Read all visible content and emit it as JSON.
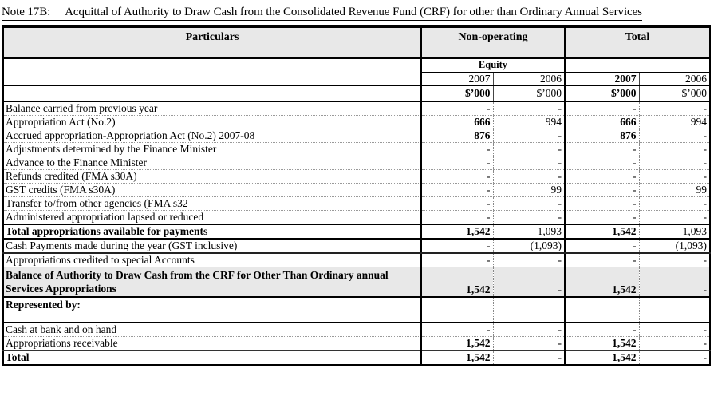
{
  "note": {
    "id": "Note 17B:",
    "title": "Acquittal of Authority to Draw Cash from the Consolidated Revenue Fund (CRF) for other than Ordinary Annual Services"
  },
  "table": {
    "columns": {
      "particulars": "Particulars",
      "group_non_operating": "Non-operating",
      "group_total": "Total",
      "equity": "Equity",
      "years": [
        "2007",
        "2006",
        "2007",
        "2006"
      ],
      "units": [
        "$’000",
        "$’000",
        "$’000",
        "$’000"
      ]
    },
    "rows": [
      {
        "label": "Balance carried from previous year",
        "values": [
          "-",
          "-",
          "-",
          "-"
        ]
      },
      {
        "label": "Appropriation Act (No.2)",
        "values": [
          "666",
          "994",
          "666",
          "994"
        ]
      },
      {
        "label": "Accrued appropriation-Appropriation Act (No.2) 2007-08",
        "values": [
          "876",
          "-",
          "876",
          "-"
        ]
      },
      {
        "label": "Adjustments determined by the Finance Minister",
        "values": [
          "-",
          "-",
          "-",
          "-"
        ]
      },
      {
        "label": "Advance to the Finance Minister",
        "values": [
          "-",
          "-",
          "-",
          "-"
        ]
      },
      {
        "label": "Refunds credited (FMA s30A)",
        "values": [
          "-",
          "-",
          "-",
          "-"
        ]
      },
      {
        "label": "GST credits (FMA s30A)",
        "values": [
          "-",
          "99",
          "-",
          "99"
        ]
      },
      {
        "label": "Transfer to/from other agencies (FMA s32",
        "values": [
          "-",
          "-",
          "-",
          "-"
        ]
      },
      {
        "label": "Administered appropriation lapsed or reduced",
        "values": [
          "-",
          "-",
          "-",
          "-"
        ]
      },
      {
        "label": "Total appropriations available for payments",
        "values": [
          "1,542",
          "1,093",
          "1,542",
          "1,093"
        ],
        "emphasis": true
      },
      {
        "label": "Cash Payments made during the year (GST inclusive)",
        "values": [
          "-",
          "(1,093)",
          "-",
          "(1,093)"
        ]
      },
      {
        "label": "Appropriations credited to special Accounts",
        "values": [
          "-",
          "-",
          "-",
          "-"
        ]
      },
      {
        "label": "Balance of Authority to Draw Cash from the CRF for Other Than Ordinary annual Services Appropriations",
        "values": [
          "1,542",
          "-",
          "1,542",
          "-"
        ],
        "emphasis": true
      },
      {
        "label": "Represented by:",
        "values": [
          "",
          "",
          "",
          ""
        ],
        "emphasis": true
      },
      {
        "label": "Cash at bank and on hand",
        "values": [
          "-",
          "-",
          "-",
          "-"
        ]
      },
      {
        "label": "Appropriations receivable",
        "values": [
          "1,542",
          "-",
          "1,542",
          "-"
        ]
      },
      {
        "label": "Total",
        "values": [
          "1,542",
          "-",
          "1,542",
          "-"
        ],
        "emphasis": true
      }
    ]
  }
}
